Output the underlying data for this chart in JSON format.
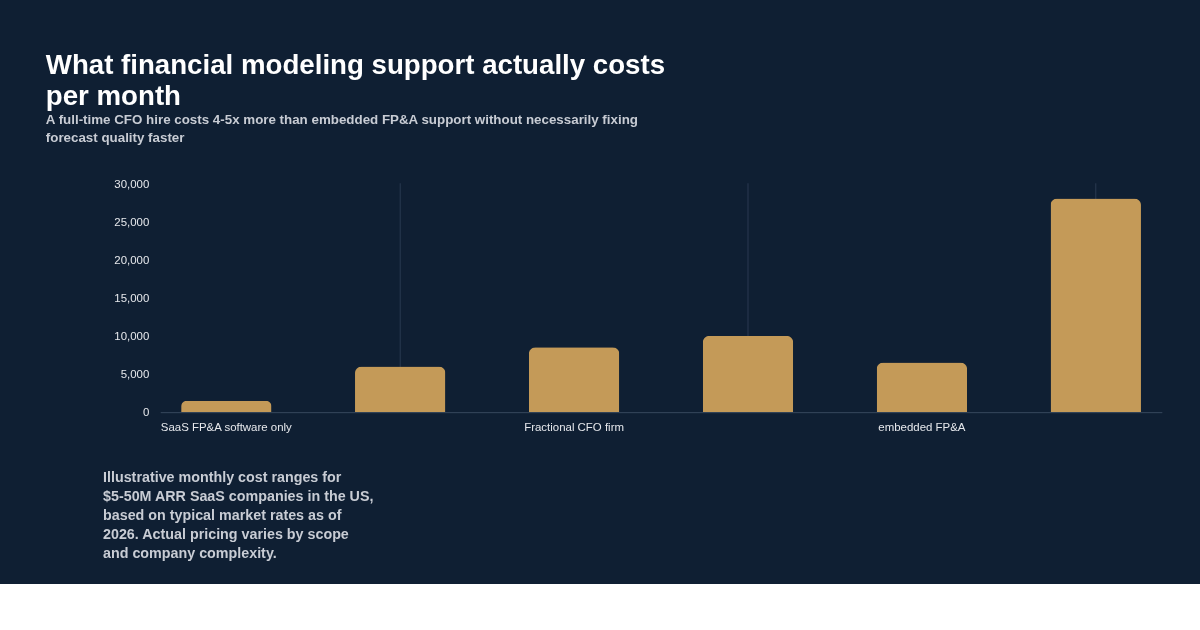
{
  "chart_data": {
    "type": "bar",
    "title": "What financial modeling support actually costs per month",
    "subtitle": "A full-time CFO hire costs 4-5x more than embedded FP&A support without necessarily fixing forecast quality faster",
    "categories": [
      "SaaS FP&A software only",
      null,
      "Fractional CFO firm",
      null,
      "embedded FP&A",
      null
    ],
    "values": [
      1500,
      6000,
      8500,
      10000,
      6500,
      28000
    ],
    "color": "#c49a58",
    "ylim": [
      0,
      30000
    ],
    "yticks": [
      0,
      {
        "value": 5000,
        "label": "5,000"
      },
      {
        "value": 10000,
        "label": "10,000"
      },
      {
        "value": 15000,
        "label": "15,000"
      },
      {
        "value": 20000,
        "label": "20,000"
      },
      {
        "value": 25000,
        "label": "25,000"
      },
      {
        "value": 30000,
        "label": "30,000"
      }
    ],
    "grid": "x",
    "annotations": [
      "Illustrative monthly cost ranges for $5-50M ARR SaaS companies in the US, based on typical market rates as of 2026. Actual pricing varies by scope and company complexity."
    ]
  }
}
